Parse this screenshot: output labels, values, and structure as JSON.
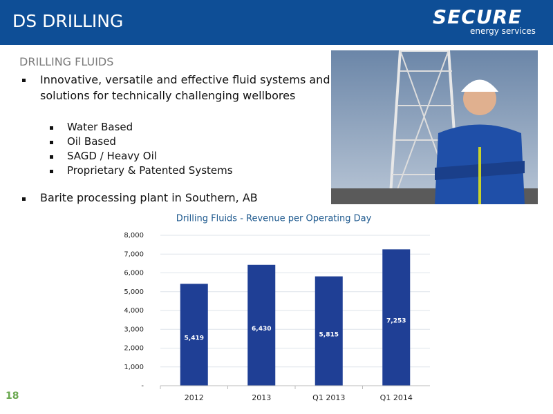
{
  "header": {
    "title": "DS DRILLING",
    "logo": "SECURE",
    "logo_tagline": "energy services"
  },
  "section_title": "DRILLING FLUIDS",
  "bullets": [
    {
      "text": "Innovative, versatile and effective fluid systems and solutions for technically challenging wellbores",
      "sub": [
        "Water Based",
        "Oil Based",
        "SAGD / Heavy Oil",
        "Proprietary & Patented Systems"
      ]
    },
    {
      "text": "Barite processing plant in Southern, AB"
    }
  ],
  "page_number": "18",
  "chart_data": {
    "type": "bar",
    "title": "Drilling Fluids - Revenue per Operating Day",
    "categories": [
      "2012",
      "2013",
      "Q1 2013",
      "Q1 2014"
    ],
    "values": [
      5419,
      6430,
      5815,
      7253
    ],
    "value_labels": [
      "5,419",
      "6,430",
      "5,815",
      "7,253"
    ],
    "color": "#1f3f95",
    "ylim": [
      0,
      8000
    ],
    "yticks": [
      {
        "value": 0,
        "label": "-"
      },
      {
        "value": 1000,
        "label": "1,000"
      },
      {
        "value": 2000,
        "label": "2,000"
      },
      {
        "value": 3000,
        "label": "3,000"
      },
      {
        "value": 4000,
        "label": "4,000"
      },
      {
        "value": 5000,
        "label": "5,000"
      },
      {
        "value": 6000,
        "label": "6,000"
      },
      {
        "value": 7000,
        "label": "7,000"
      },
      {
        "value": 8000,
        "label": "8,000"
      }
    ],
    "grid": true
  }
}
